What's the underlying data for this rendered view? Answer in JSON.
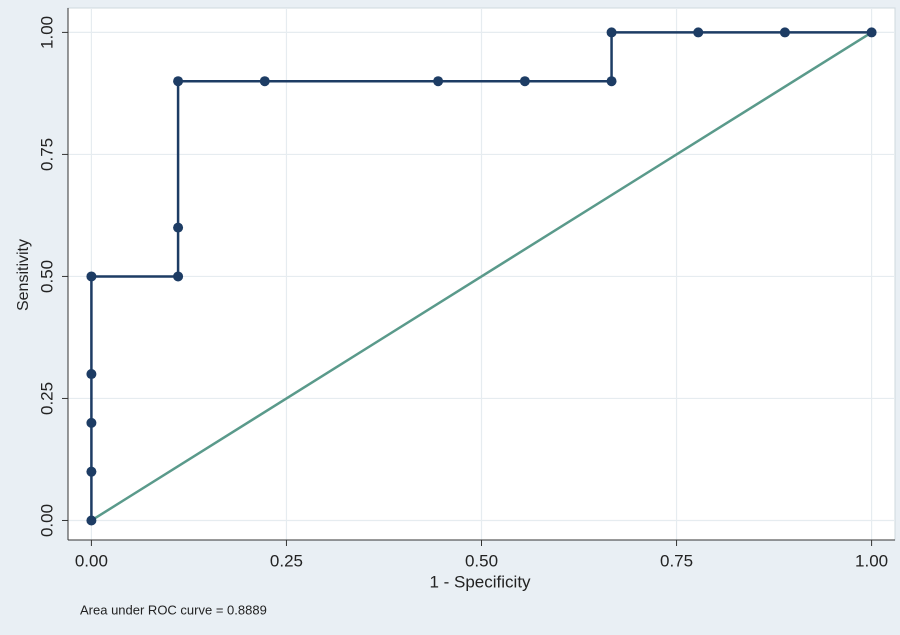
{
  "chart_data": {
    "type": "line",
    "xlabel": "1 - Specificity",
    "ylabel": "Sensitivity",
    "note": "Area under ROC curve = 0.8889",
    "xlim": [
      -0.03,
      1.03
    ],
    "ylim": [
      -0.04,
      1.05
    ],
    "xticks": [
      {
        "value": 0,
        "label": "0.00"
      },
      {
        "value": 0.25,
        "label": "0.25"
      },
      {
        "value": 0.5,
        "label": "0.50"
      },
      {
        "value": 0.75,
        "label": "0.75"
      },
      {
        "value": 1,
        "label": "1.00"
      }
    ],
    "yticks": [
      {
        "value": 0,
        "label": "0.00"
      },
      {
        "value": 0.25,
        "label": "0.25"
      },
      {
        "value": 0.5,
        "label": "0.50"
      },
      {
        "value": 0.75,
        "label": "0.75"
      },
      {
        "value": 1,
        "label": "1.00"
      }
    ],
    "grid": true,
    "series": [
      {
        "color": "#1d3c64",
        "marker": true,
        "x": [
          0,
          0,
          0,
          0,
          0,
          0.1111,
          0.1111,
          0.1111,
          0.2222,
          0.4444,
          0.5556,
          0.6667,
          0.6667,
          0.7778,
          0.8889,
          1
        ],
        "values": [
          0,
          0.1,
          0.2,
          0.3,
          0.5,
          0.5,
          0.6,
          0.9,
          0.9,
          0.9,
          0.9,
          0.9,
          1,
          1,
          1,
          1
        ]
      },
      {
        "color": "#5a9a8b",
        "marker": false,
        "x": [
          0,
          1
        ],
        "values": [
          0,
          1
        ]
      }
    ]
  }
}
